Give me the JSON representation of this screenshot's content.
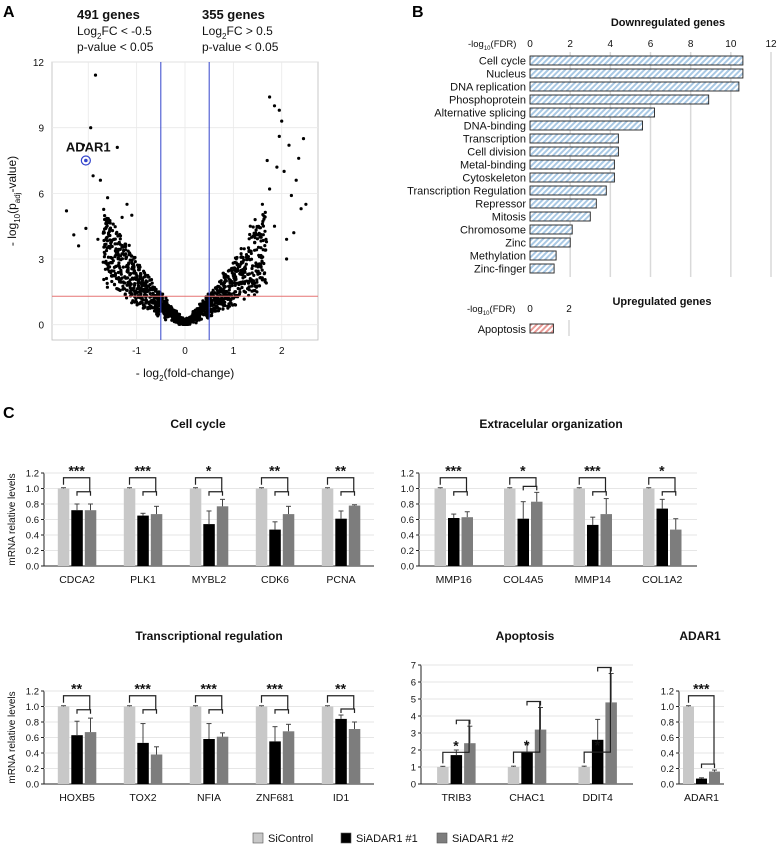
{
  "panel_letters": {
    "a": "A",
    "b": "B",
    "c": "C"
  },
  "legend": {
    "items": [
      {
        "name": "SiControl",
        "color": "#c8c8c8"
      },
      {
        "name": "SiADAR1 #1",
        "color": "#000000"
      },
      {
        "name": "SiADAR1 #2",
        "color": "#7d7d7d"
      }
    ]
  },
  "colors": {
    "bar_blue": "#a8c8e4",
    "bar_red": "#e89a96",
    "vline": "#3344cc",
    "hline": "#e57373",
    "grid": "#d9d9d9"
  },
  "chart_data": [
    {
      "id": "volcano",
      "type": "scatter",
      "title_left": {
        "line1": "491 genes",
        "line2_prefix": "Log",
        "line2_sub": "2",
        "line2_suffix": "FC < -0.5",
        "line3": "p-value < 0.05"
      },
      "title_right": {
        "line1": "355 genes",
        "line2_prefix": "Log",
        "line2_sub": "2",
        "line2_suffix": "FC > 0.5",
        "line3": "p-value < 0.05"
      },
      "xlabel": {
        "prefix": "- log",
        "sub": "2",
        "suffix": "(fold-change)"
      },
      "ylabel": {
        "prefix": "- log",
        "sub": "10",
        "mid": "(p",
        "sub2": "adj",
        "suffix": "-value)"
      },
      "xlim": [
        -2.75,
        2.75
      ],
      "ylim": [
        -0.7,
        12
      ],
      "xticks": [
        -2,
        -1,
        0,
        1,
        2
      ],
      "yticks": [
        0,
        3,
        6,
        9,
        12
      ],
      "xtick_labels": [
        "-2",
        "-1",
        "0",
        "1",
        "2"
      ],
      "ytick_labels": [
        "0",
        "3",
        "6",
        "9",
        "12"
      ],
      "vlines": [
        -0.5,
        0.5
      ],
      "hline": 1.3,
      "highlight": {
        "label": "ADAR1",
        "x": -2.05,
        "y": 7.5
      },
      "outliers": [
        [
          -1.85,
          11.4
        ],
        [
          -2.45,
          5.2
        ],
        [
          -2.3,
          4.1
        ],
        [
          -2.05,
          4.4
        ],
        [
          -1.95,
          9.0
        ],
        [
          -1.9,
          6.8
        ],
        [
          -1.75,
          6.6
        ],
        [
          -2.1,
          8.2
        ],
        [
          -1.6,
          5.8
        ],
        [
          -1.65,
          4.8
        ],
        [
          -1.4,
          8.1
        ],
        [
          -1.5,
          4.3
        ],
        [
          -1.2,
          5.5
        ],
        [
          -1.3,
          4.9
        ],
        [
          -1.1,
          5.0
        ],
        [
          -1.8,
          3.9
        ],
        [
          -2.2,
          3.6
        ],
        [
          -1.55,
          3.5
        ],
        [
          1.75,
          10.4
        ],
        [
          1.85,
          10.0
        ],
        [
          2.0,
          9.3
        ],
        [
          2.15,
          8.2
        ],
        [
          2.45,
          8.5
        ],
        [
          1.95,
          8.6
        ],
        [
          2.3,
          6.6
        ],
        [
          1.9,
          7.2
        ],
        [
          2.05,
          7.0
        ],
        [
          2.4,
          5.3
        ],
        [
          2.2,
          5.9
        ],
        [
          2.5,
          5.5
        ],
        [
          1.6,
          5.5
        ],
        [
          1.75,
          6.2
        ],
        [
          2.25,
          4.2
        ],
        [
          1.45,
          4.8
        ],
        [
          1.35,
          4.5
        ],
        [
          1.55,
          4.0
        ],
        [
          2.1,
          3.9
        ],
        [
          1.85,
          4.5
        ],
        [
          2.35,
          7.6
        ],
        [
          1.95,
          9.8
        ],
        [
          2.1,
          3.0
        ],
        [
          1.7,
          7.5
        ]
      ]
    },
    {
      "id": "go-down",
      "type": "bar",
      "orientation": "horizontal",
      "title": "Downregulated genes",
      "axis_label": {
        "prefix": "-log",
        "sub": "10",
        "suffix": "(FDR)"
      },
      "xlim": [
        0,
        12
      ],
      "xticks": [
        0,
        2,
        4,
        6,
        8,
        10,
        12
      ],
      "xtick_labels": [
        "0",
        "2",
        "4",
        "6",
        "8",
        "10",
        "12"
      ],
      "categories": [
        "Cell cycle",
        "Nucleus",
        "DNA replication",
        "Phosphoprotein",
        "Alternative splicing",
        "DNA-binding",
        "Transcription",
        "Cell division",
        "Metal-binding",
        "Cytoskeleton",
        "Transcription Regulation",
        "Repressor",
        "Mitosis",
        "Chromosome",
        "Zinc",
        "Methylation",
        "Zinc-finger"
      ],
      "values": [
        10.6,
        10.6,
        10.4,
        8.9,
        6.2,
        5.6,
        4.4,
        4.4,
        4.2,
        4.2,
        3.8,
        3.3,
        3.0,
        2.1,
        2.0,
        1.3,
        1.2
      ]
    },
    {
      "id": "go-up",
      "type": "bar",
      "orientation": "horizontal",
      "title": "Upregulated genes",
      "axis_label": {
        "prefix": "-log",
        "sub": "10",
        "suffix": "(FDR)"
      },
      "xlim": [
        0,
        2
      ],
      "xticks": [
        0,
        2
      ],
      "xtick_labels": [
        "0",
        "2"
      ],
      "categories": [
        "Apoptosis"
      ],
      "values": [
        1.2
      ]
    },
    {
      "id": "cell-cycle",
      "type": "bar",
      "title": "Cell cycle",
      "ylabel": "mRNA relative levels",
      "ylim": [
        0,
        1.2
      ],
      "yticks": [
        "0.0",
        "0.2",
        "0.4",
        "0.6",
        "0.8",
        "1.0",
        "1.2"
      ],
      "series_names": [
        "SiControl",
        "SiADAR1 #1",
        "SiADAR1 #2"
      ],
      "categories": [
        "CDCA2",
        "PLK1",
        "MYBL2",
        "CDK6",
        "PCNA"
      ],
      "values": [
        [
          1.0,
          0.72,
          0.72
        ],
        [
          1.0,
          0.65,
          0.67
        ],
        [
          1.0,
          0.54,
          0.77
        ],
        [
          1.0,
          0.47,
          0.67
        ],
        [
          1.0,
          0.61,
          0.78
        ]
      ],
      "errors": [
        [
          0.01,
          0.08,
          0.08
        ],
        [
          0.01,
          0.03,
          0.1
        ],
        [
          0.01,
          0.17,
          0.09
        ],
        [
          0.01,
          0.1,
          0.1
        ],
        [
          0.01,
          0.1,
          0.01
        ]
      ],
      "significance": [
        "***",
        "***",
        "*",
        "**",
        "**"
      ]
    },
    {
      "id": "ecm",
      "type": "bar",
      "title": "Extracelular organization",
      "ylim": [
        0,
        1.2
      ],
      "yticks": [
        "0.0",
        "0.2",
        "0.4",
        "0.6",
        "0.8",
        "1.0",
        "1.2"
      ],
      "categories": [
        "MMP16",
        "COL4A5",
        "MMP14",
        "COL1A2"
      ],
      "values": [
        [
          1.0,
          0.62,
          0.63
        ],
        [
          1.0,
          0.61,
          0.83
        ],
        [
          1.0,
          0.53,
          0.67
        ],
        [
          1.0,
          0.74,
          0.47
        ]
      ],
      "errors": [
        [
          0.01,
          0.05,
          0.07
        ],
        [
          0.01,
          0.22,
          0.12
        ],
        [
          0.01,
          0.1,
          0.2
        ],
        [
          0.01,
          0.12,
          0.14
        ]
      ],
      "significance": [
        "***",
        "*",
        "***",
        "*"
      ]
    },
    {
      "id": "transcription",
      "type": "bar",
      "title": "Transcriptional regulation",
      "ylabel": "mRNA relative levels",
      "ylim": [
        0,
        1.2
      ],
      "yticks": [
        "0.0",
        "0.2",
        "0.4",
        "0.6",
        "0.8",
        "1.0",
        "1.2"
      ],
      "categories": [
        "HOXB5",
        "TOX2",
        "NFIA",
        "ZNF681",
        "ID1"
      ],
      "values": [
        [
          1.0,
          0.63,
          0.67
        ],
        [
          1.0,
          0.53,
          0.38
        ],
        [
          1.0,
          0.58,
          0.61
        ],
        [
          1.0,
          0.55,
          0.68
        ],
        [
          1.0,
          0.84,
          0.71
        ]
      ],
      "errors": [
        [
          0.01,
          0.18,
          0.18
        ],
        [
          0.01,
          0.25,
          0.1
        ],
        [
          0.01,
          0.2,
          0.05
        ],
        [
          0.01,
          0.19,
          0.09
        ],
        [
          0.01,
          0.05,
          0.09
        ]
      ],
      "significance": [
        "**",
        "***",
        "***",
        "***",
        "**"
      ]
    },
    {
      "id": "apoptosis",
      "type": "bar",
      "title": "Apoptosis",
      "ylim": [
        0,
        7
      ],
      "yticks": [
        "0",
        "1",
        "2",
        "3",
        "4",
        "5",
        "6",
        "7"
      ],
      "categories": [
        "TRIB3",
        "CHAC1",
        "DDIT4"
      ],
      "values": [
        [
          1.0,
          1.7,
          2.4
        ],
        [
          1.0,
          1.9,
          3.2
        ],
        [
          1.0,
          2.6,
          4.8
        ]
      ],
      "errors": [
        [
          0.04,
          0.3,
          1.0
        ],
        [
          0.05,
          0.5,
          1.3
        ],
        [
          0.05,
          1.2,
          1.7
        ]
      ],
      "significance": [
        "*",
        "*",
        "*"
      ]
    },
    {
      "id": "adar1",
      "type": "bar",
      "title": "ADAR1",
      "ylim": [
        0,
        1.2
      ],
      "yticks": [
        "0.0",
        "0.2",
        "0.4",
        "0.6",
        "0.8",
        "1.0",
        "1.2"
      ],
      "categories": [
        "ADAR1"
      ],
      "values": [
        [
          1.0,
          0.07,
          0.16
        ]
      ],
      "errors": [
        [
          0.01,
          0.01,
          0.02
        ]
      ],
      "significance": [
        "***"
      ]
    }
  ]
}
